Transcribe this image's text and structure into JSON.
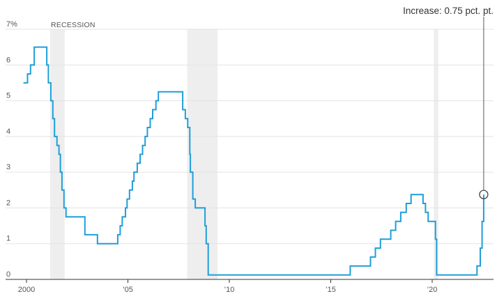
{
  "chart_data": {
    "type": "line",
    "title": "",
    "xlabel": "",
    "ylabel": "",
    "xlim": [
      1999.6,
      2023.2
    ],
    "ylim": [
      0,
      7
    ],
    "y_ticks": [
      {
        "value": 0,
        "label": "0"
      },
      {
        "value": 1,
        "label": "1"
      },
      {
        "value": 2,
        "label": "2"
      },
      {
        "value": 3,
        "label": "3"
      },
      {
        "value": 4,
        "label": "4"
      },
      {
        "value": 5,
        "label": "5"
      },
      {
        "value": 6,
        "label": "6"
      },
      {
        "value": 7,
        "label": "7%"
      }
    ],
    "x_ticks": [
      {
        "value": 2000,
        "label": "2000"
      },
      {
        "value": 2005,
        "label": "’05"
      },
      {
        "value": 2010,
        "label": "’10"
      },
      {
        "value": 2015,
        "label": "’15"
      },
      {
        "value": 2020,
        "label": "’20"
      }
    ],
    "grid": true,
    "recession_label": "RECESSION",
    "recessions": [
      {
        "start": 2001.17,
        "end": 2001.88
      },
      {
        "start": 2007.92,
        "end": 2009.42
      },
      {
        "start": 2020.08,
        "end": 2020.3
      }
    ],
    "annotation": {
      "text": "Increase: 0.75 pct. pt.",
      "x": 2022.54,
      "y": 2.375
    },
    "line_color": "#1f9ed8",
    "recession_color": "#eeeeef",
    "series": [
      {
        "step": true,
        "points": [
          [
            1999.85,
            5.5
          ],
          [
            2000.05,
            5.75
          ],
          [
            2000.2,
            6.0
          ],
          [
            2000.38,
            6.5
          ],
          [
            2001.0,
            6.0
          ],
          [
            2001.08,
            5.5
          ],
          [
            2001.2,
            5.0
          ],
          [
            2001.3,
            4.5
          ],
          [
            2001.38,
            4.0
          ],
          [
            2001.5,
            3.75
          ],
          [
            2001.6,
            3.5
          ],
          [
            2001.67,
            3.0
          ],
          [
            2001.75,
            2.5
          ],
          [
            2001.85,
            2.0
          ],
          [
            2001.95,
            1.75
          ],
          [
            2002.88,
            1.25
          ],
          [
            2003.5,
            1.0
          ],
          [
            2004.5,
            1.25
          ],
          [
            2004.62,
            1.5
          ],
          [
            2004.72,
            1.75
          ],
          [
            2004.88,
            2.0
          ],
          [
            2004.96,
            2.25
          ],
          [
            2005.08,
            2.5
          ],
          [
            2005.22,
            2.75
          ],
          [
            2005.3,
            3.0
          ],
          [
            2005.46,
            3.25
          ],
          [
            2005.6,
            3.5
          ],
          [
            2005.72,
            3.75
          ],
          [
            2005.85,
            4.0
          ],
          [
            2005.96,
            4.25
          ],
          [
            2006.1,
            4.5
          ],
          [
            2006.22,
            4.75
          ],
          [
            2006.38,
            5.0
          ],
          [
            2006.5,
            5.25
          ],
          [
            2007.7,
            4.75
          ],
          [
            2007.83,
            4.5
          ],
          [
            2007.95,
            4.25
          ],
          [
            2008.05,
            3.5
          ],
          [
            2008.08,
            3.0
          ],
          [
            2008.2,
            2.25
          ],
          [
            2008.32,
            2.0
          ],
          [
            2008.8,
            1.5
          ],
          [
            2008.86,
            1.0
          ],
          [
            2008.96,
            0.125
          ],
          [
            2015.96,
            0.375
          ],
          [
            2016.96,
            0.625
          ],
          [
            2017.2,
            0.875
          ],
          [
            2017.45,
            1.125
          ],
          [
            2017.96,
            1.375
          ],
          [
            2018.2,
            1.625
          ],
          [
            2018.45,
            1.875
          ],
          [
            2018.72,
            2.125
          ],
          [
            2018.96,
            2.375
          ],
          [
            2019.55,
            2.125
          ],
          [
            2019.67,
            1.875
          ],
          [
            2019.8,
            1.625
          ],
          [
            2020.16,
            1.125
          ],
          [
            2020.22,
            0.125
          ],
          [
            2022.21,
            0.375
          ],
          [
            2022.37,
            0.875
          ],
          [
            2022.46,
            1.625
          ],
          [
            2022.54,
            2.375
          ]
        ]
      }
    ]
  }
}
